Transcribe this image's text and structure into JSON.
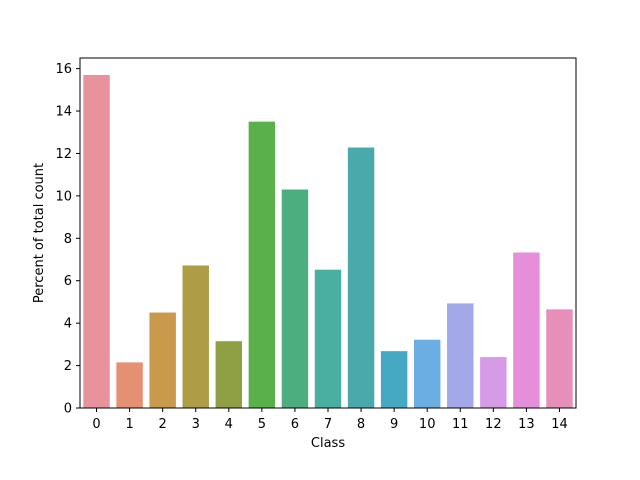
{
  "chart_data": {
    "type": "bar",
    "title": "",
    "xlabel": "Class",
    "ylabel": "Percent of total count",
    "categories": [
      "0",
      "1",
      "2",
      "3",
      "4",
      "5",
      "6",
      "7",
      "8",
      "9",
      "10",
      "11",
      "12",
      "13",
      "14"
    ],
    "values": [
      15.7,
      2.15,
      4.5,
      6.72,
      3.15,
      13.5,
      10.3,
      6.52,
      12.28,
      2.68,
      3.22,
      4.93,
      2.4,
      7.33,
      4.65
    ],
    "colors": [
      "#e8939c",
      "#e58f73",
      "#c99a4b",
      "#ae9c46",
      "#8e9f44",
      "#5ab04a",
      "#4cae7e",
      "#4aaea1",
      "#4aaaab",
      "#46a9c3",
      "#6aaee3",
      "#a3a8e9",
      "#d59be7",
      "#e58fdb",
      "#e58fba"
    ],
    "ylim": [
      0,
      16.5
    ],
    "yticks": [
      0,
      2,
      4,
      6,
      8,
      10,
      12,
      14,
      16
    ],
    "grid": false
  }
}
